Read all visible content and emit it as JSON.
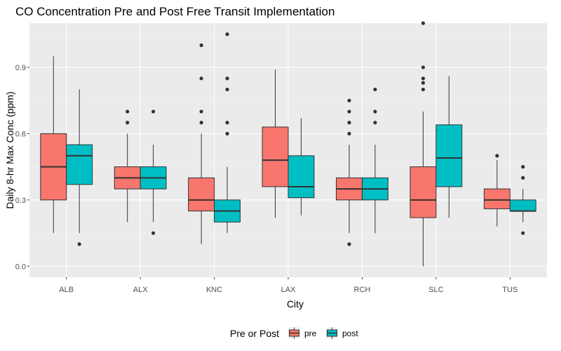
{
  "chart_data": {
    "type": "boxplot",
    "title": "CO Concentration Pre and Post Free Transit Implementation",
    "xlabel": "City",
    "ylabel": "Daily 8-hr Max Conc (ppm)",
    "ylim": [
      -0.05,
      1.1
    ],
    "yticks": [
      0.0,
      0.3,
      0.6,
      0.9
    ],
    "ytick_labels": [
      "0.0",
      "0.3",
      "0.6",
      "0.9"
    ],
    "categories": [
      "ALB",
      "ALX",
      "KNC",
      "LAX",
      "RCH",
      "SLC",
      "TUS"
    ],
    "grid": true,
    "legend": {
      "title": "Pre or Post",
      "position": "bottom"
    },
    "series": [
      {
        "name": "pre",
        "color": "#F8766D",
        "boxes": [
          {
            "category": "ALB",
            "whisker_low": 0.15,
            "q1": 0.3,
            "median": 0.45,
            "q3": 0.6,
            "whisker_high": 0.95,
            "outliers": []
          },
          {
            "category": "ALX",
            "whisker_low": 0.2,
            "q1": 0.35,
            "median": 0.4,
            "q3": 0.45,
            "whisker_high": 0.6,
            "outliers": [
              0.65,
              0.7
            ]
          },
          {
            "category": "KNC",
            "whisker_low": 0.1,
            "q1": 0.25,
            "median": 0.3,
            "q3": 0.4,
            "whisker_high": 0.6,
            "outliers": [
              0.65,
              0.7,
              0.85,
              1.0
            ]
          },
          {
            "category": "LAX",
            "whisker_low": 0.22,
            "q1": 0.36,
            "median": 0.48,
            "q3": 0.63,
            "whisker_high": 0.89,
            "outliers": []
          },
          {
            "category": "RCH",
            "whisker_low": 0.15,
            "q1": 0.3,
            "median": 0.35,
            "q3": 0.4,
            "whisker_high": 0.55,
            "outliers": [
              0.1,
              0.6,
              0.65,
              0.7,
              0.75
            ]
          },
          {
            "category": "SLC",
            "whisker_low": 0.0,
            "q1": 0.22,
            "median": 0.3,
            "q3": 0.45,
            "whisker_high": 0.7,
            "outliers": [
              0.8,
              0.83,
              0.85,
              0.9,
              1.1
            ]
          },
          {
            "category": "TUS",
            "whisker_low": 0.18,
            "q1": 0.26,
            "median": 0.3,
            "q3": 0.35,
            "whisker_high": 0.48,
            "outliers": [
              0.5
            ]
          }
        ]
      },
      {
        "name": "post",
        "color": "#00BFC4",
        "boxes": [
          {
            "category": "ALB",
            "whisker_low": 0.15,
            "q1": 0.37,
            "median": 0.5,
            "q3": 0.55,
            "whisker_high": 0.8,
            "outliers": [
              0.1
            ]
          },
          {
            "category": "ALX",
            "whisker_low": 0.2,
            "q1": 0.35,
            "median": 0.4,
            "q3": 0.45,
            "whisker_high": 0.55,
            "outliers": [
              0.15,
              0.7
            ]
          },
          {
            "category": "KNC",
            "whisker_low": 0.15,
            "q1": 0.2,
            "median": 0.25,
            "q3": 0.3,
            "whisker_high": 0.45,
            "outliers": [
              0.6,
              0.65,
              0.8,
              0.85,
              1.05
            ]
          },
          {
            "category": "LAX",
            "whisker_low": 0.23,
            "q1": 0.31,
            "median": 0.36,
            "q3": 0.5,
            "whisker_high": 0.67,
            "outliers": []
          },
          {
            "category": "RCH",
            "whisker_low": 0.15,
            "q1": 0.3,
            "median": 0.35,
            "q3": 0.4,
            "whisker_high": 0.55,
            "outliers": [
              0.65,
              0.7,
              0.8
            ]
          },
          {
            "category": "SLC",
            "whisker_low": 0.22,
            "q1": 0.36,
            "median": 0.49,
            "q3": 0.64,
            "whisker_high": 0.86,
            "outliers": []
          },
          {
            "category": "TUS",
            "whisker_low": 0.2,
            "q1": 0.25,
            "median": 0.25,
            "q3": 0.3,
            "whisker_high": 0.35,
            "outliers": [
              0.15,
              0.4,
              0.45
            ]
          }
        ]
      }
    ]
  }
}
